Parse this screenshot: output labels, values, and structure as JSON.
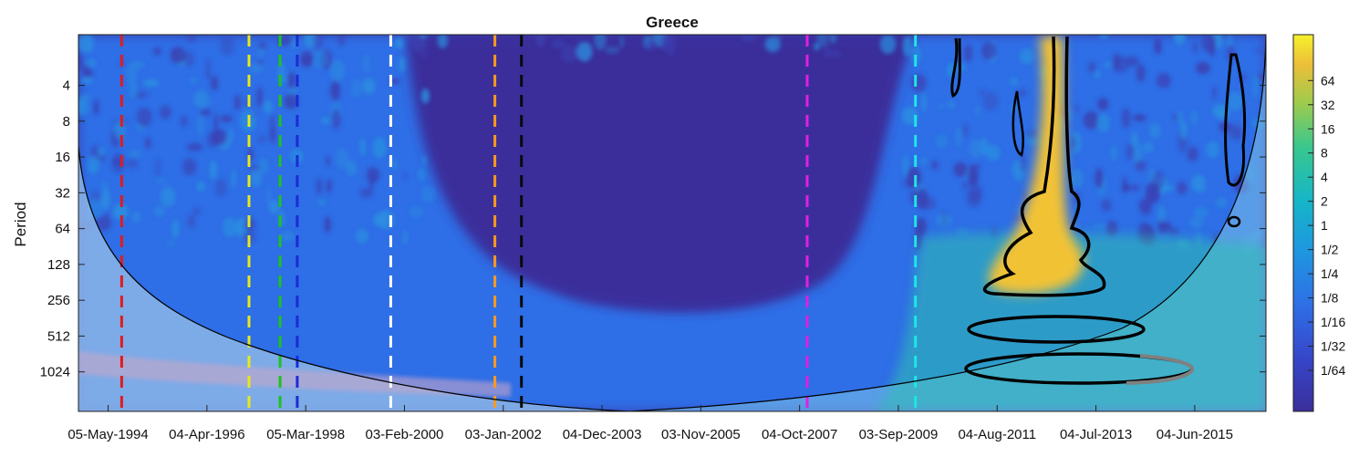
{
  "chart_data": {
    "type": "heatmap",
    "title": "Greece",
    "xlabel": "",
    "ylabel": "Period",
    "x_tick_labels": [
      "05-May-1994",
      "04-Apr-1996",
      "05-Mar-1998",
      "03-Feb-2000",
      "03-Jan-2002",
      "04-Dec-2003",
      "03-Nov-2005",
      "04-Oct-2007",
      "03-Sep-2009",
      "04-Aug-2011",
      "04-Jul-2013",
      "04-Jun-2015"
    ],
    "x_range": [
      "1994-05-05",
      "2016-03-15"
    ],
    "y_scale": "log2",
    "y_tick_values": [
      4,
      8,
      16,
      32,
      64,
      128,
      256,
      512,
      1024
    ],
    "y_tick_labels": [
      "4",
      "8",
      "16",
      "32",
      "64",
      "128",
      "256",
      "512",
      "1024"
    ],
    "y_range": [
      1.5,
      2200
    ],
    "colorbar": {
      "scale": "log2",
      "tick_labels": [
        "64",
        "32",
        "16",
        "8",
        "4",
        "2",
        "1",
        "1/2",
        "1/4",
        "1/8",
        "1/16",
        "1/32",
        "1/64"
      ],
      "tick_values": [
        64,
        32,
        16,
        8,
        4,
        2,
        1,
        0.5,
        0.25,
        0.125,
        0.0625,
        0.03125,
        0.015625
      ],
      "colormap": [
        "#3a2f9b",
        "#2f5fe0",
        "#1e96e4",
        "#13bcbc",
        "#44c987",
        "#aacb4a",
        "#f2c236",
        "#f5f02a"
      ]
    },
    "events": [
      {
        "date": "1995-02-20",
        "color": "#e21b1b"
      },
      {
        "date": "1997-06-25",
        "color": "#e8e81a"
      },
      {
        "date": "1998-01-20",
        "color": "#1ec21e"
      },
      {
        "date": "1998-05-15",
        "color": "#1c2bd6"
      },
      {
        "date": "2000-02-03",
        "color": "#ffffff"
      },
      {
        "date": "2002-01-03",
        "color": "#ff9a1a"
      },
      {
        "date": "2002-07-01",
        "color": "#0a0a0a"
      },
      {
        "date": "2007-10-04",
        "color": "#e21ee2"
      },
      {
        "date": "2009-10-01",
        "color": "#1ee6e6"
      }
    ],
    "colors": {
      "background_low": "#3a2f9b",
      "background_mid": "#2f5fe0",
      "cone_region": "#7ec3e8",
      "high_power": "#f2c236",
      "contour": "#000000",
      "contour_outside_coi": "#808080"
    }
  }
}
